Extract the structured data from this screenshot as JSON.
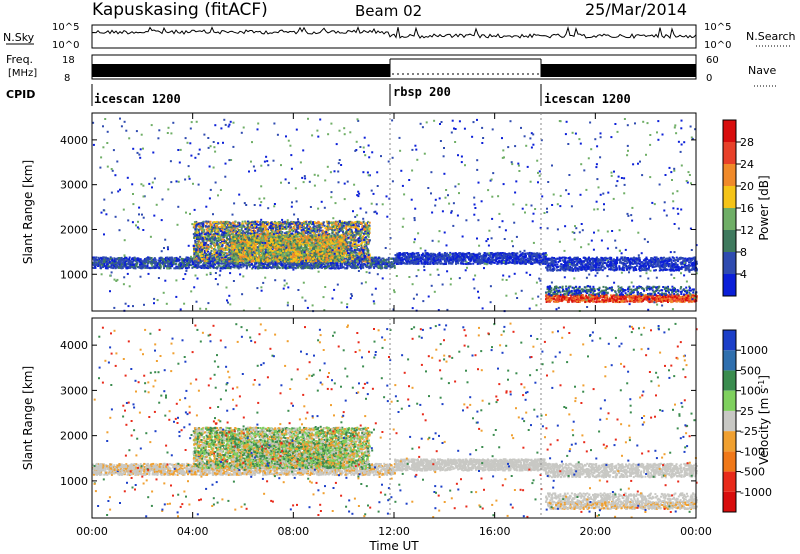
{
  "header": {
    "station": "Kapuskasing (fitACF)",
    "beam": "Beam 02",
    "date": "25/Mar/2014"
  },
  "top_panels": {
    "nsky_label": "N.Sky",
    "nsky_ticks": [
      "10^5",
      "10^0"
    ],
    "nsearch_label": "N.Search",
    "nsearch_ticks": [
      "10^5",
      "10^0"
    ],
    "freq_label": "Freq.",
    "freq_unit": "[MHz]",
    "freq_ticks": [
      "18",
      "8"
    ],
    "nave_label": "Nave",
    "nave_ticks": [
      "60",
      "0"
    ],
    "cpid_label": "CPID",
    "cpid_segments": [
      {
        "label": "icescan 1200",
        "start": 0,
        "end": 12
      },
      {
        "label": "rbsp 200",
        "start": 12,
        "end": 18
      },
      {
        "label": "icescan 1200",
        "start": 18,
        "end": 24
      }
    ]
  },
  "x_axis": {
    "label": "Time UT",
    "ticks": [
      "00:00",
      "04:00",
      "08:00",
      "12:00",
      "16:00",
      "20:00",
      "00:00"
    ],
    "range_hours": [
      0,
      24
    ]
  },
  "y_axis": {
    "label": "Slant Range [km]",
    "ticks": [
      "1000",
      "2000",
      "3000",
      "4000"
    ],
    "range_km": [
      180,
      4600
    ]
  },
  "power_scale": {
    "label": "Power [dB]",
    "ticks": [
      "4",
      "8",
      "12",
      "16",
      "20",
      "24",
      "28"
    ],
    "colors": [
      "#0b1fd8",
      "#2f4bb0",
      "#3f7a5e",
      "#6fae66",
      "#f5c418",
      "#f08a2a",
      "#e8412a",
      "#d80d0d"
    ]
  },
  "velocity_scale": {
    "label": "Velocity [m s^-1]",
    "ticks": [
      "1000",
      "500",
      "100",
      "25",
      "-25",
      "-100",
      "-500",
      "-1000"
    ],
    "colors": [
      "#1c3fc8",
      "#2f6fae",
      "#3a8c4e",
      "#7fd05e",
      "#c8c8c4",
      "#f0a030",
      "#f07818",
      "#e82a1a",
      "#d80d0d"
    ]
  },
  "chart_data": {
    "type": "heatmap",
    "title": "Kapuskasing (fitACF)",
    "xlabel": "Time UT",
    "ylabel": "Slant Range [km]",
    "xlim": [
      0,
      24
    ],
    "ylim": [
      180,
      4600
    ],
    "panels": [
      {
        "name": "Power",
        "colorbar_label": "Power [dB]",
        "colorbar_range": [
          0,
          32
        ]
      },
      {
        "name": "Velocity",
        "colorbar_label": "Velocity [m s^-1]",
        "colorbar_range": [
          -1000,
          1000
        ]
      }
    ]
  }
}
